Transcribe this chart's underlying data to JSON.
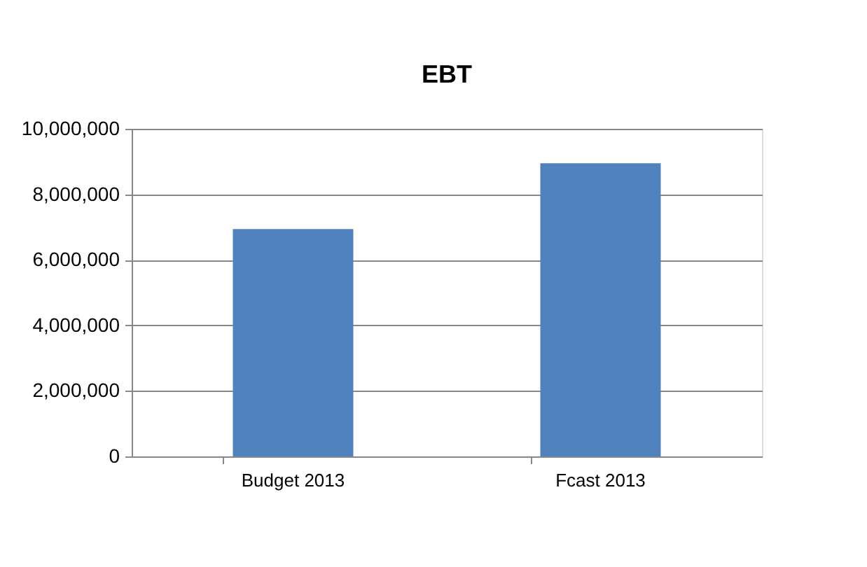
{
  "chart_data": {
    "type": "bar",
    "title": "EBT",
    "categories": [
      "Budget 2013",
      "Fcast 2013"
    ],
    "values": [
      6940000,
      8950000
    ],
    "color": "#4f81bd",
    "ylim": [
      0,
      10000000
    ],
    "yticks": [
      0,
      {
        "value": 2000000,
        "label": "2,000,000"
      },
      {
        "value": 4000000,
        "label": "4,000,000"
      },
      {
        "value": 6000000,
        "label": "6,000,000"
      },
      {
        "value": 8000000,
        "label": "8,000,000"
      },
      {
        "value": 10000000,
        "label": "10,000,000"
      }
    ],
    "grid": "y"
  }
}
